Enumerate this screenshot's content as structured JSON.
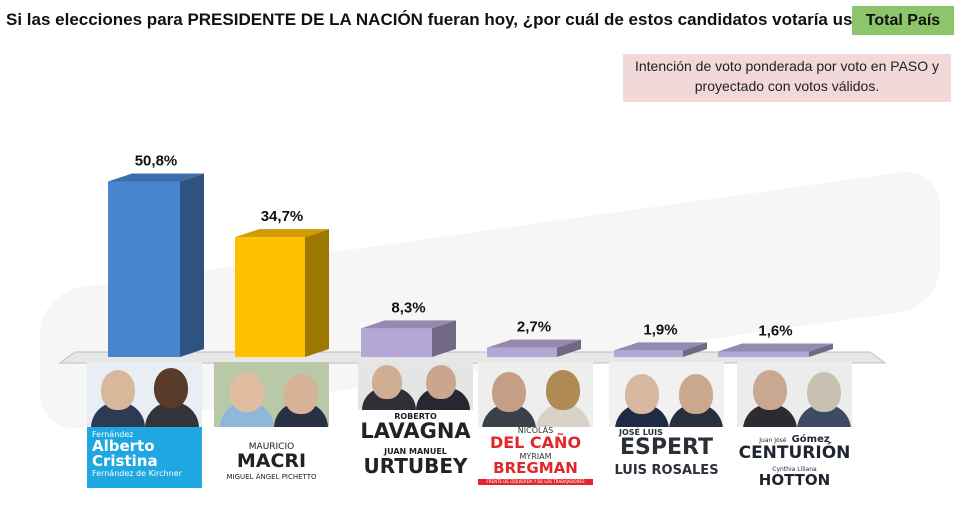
{
  "title": "Si las elecciones para PRESIDENTE DE LA NACIÓN fueran hoy, ¿por cuál de estos candidatos votaría usted?",
  "scope_badge": "Total País",
  "note": "Intención de voto ponderada por voto en PASO y proyectado con votos válidos.",
  "colors": {
    "fernandez": "#4a86d0",
    "macri": "#ffc000",
    "others": "#b4a7d6",
    "badge": "#8dc56b",
    "note_bg": "#f1d9d9"
  },
  "chart_data": {
    "type": "bar",
    "categories": [
      "Fernández – Fernández de Kirchner",
      "Macri – Pichetto",
      "Lavagna – Urtubey",
      "Del Caño – Bregman",
      "Espert – Rosales",
      "Gómez Centurión – Hotton"
    ],
    "values": [
      50.8,
      34.7,
      8.3,
      2.7,
      1.9,
      1.6
    ],
    "value_labels": [
      "50,8%",
      "34,7%",
      "8,3%",
      "2,7%",
      "1,9%",
      "1,6%"
    ],
    "title": "",
    "xlabel": "",
    "ylabel": "",
    "ylim": [
      0,
      55
    ],
    "grid": false
  },
  "candidates": [
    {
      "line1": "Fernández",
      "line2": "Alberto",
      "line3": "Cristina",
      "line4": "Fernández de Kirchner"
    },
    {
      "line1": "MAURICIO",
      "line2": "MACRI",
      "line3": "MIGUEL ÁNGEL PICHETTO"
    },
    {
      "line1": "ROBERTO",
      "line2": "LAVAGNA",
      "line3": "JUAN MANUEL",
      "line4": "URTUBEY"
    },
    {
      "line1": "NICOLÁS",
      "line2": "DEL CAÑO",
      "line3": "MYRIAM",
      "line4": "BREGMAN",
      "line5": "FRENTE DE IZQUIERDA Y DE LOS TRABAJADORES"
    },
    {
      "line1": "JOSÉ LUIS",
      "line2": "ESPERT",
      "line3": "LUIS ROSALES"
    },
    {
      "line1": "Juan José",
      "line2": "Gómez",
      "line3": "CENTURIÓN",
      "line4": "Cynthia Liliana",
      "line5": "HOTTON"
    }
  ]
}
